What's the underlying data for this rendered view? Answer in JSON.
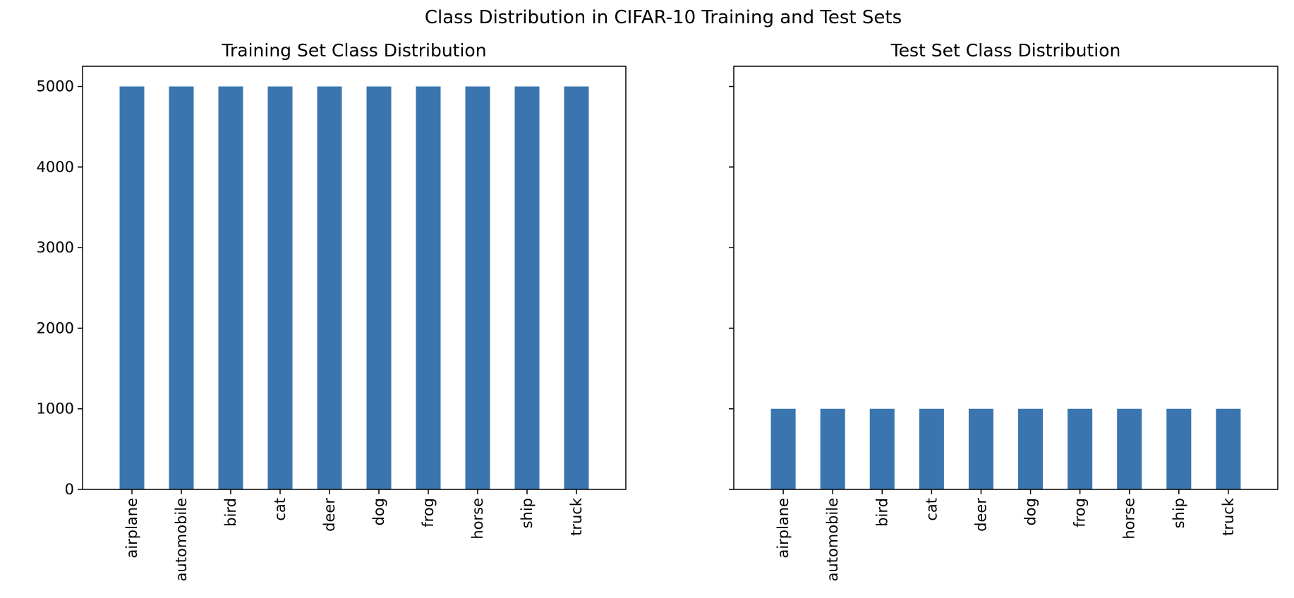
{
  "figure": {
    "suptitle": "Class Distribution in CIFAR-10 Training and Test Sets",
    "bar_color": "#3a75af"
  },
  "chart_data": [
    {
      "type": "bar",
      "title": "Training Set Class Distribution",
      "xlabel": "",
      "ylabel": "",
      "categories": [
        "airplane",
        "automobile",
        "bird",
        "cat",
        "deer",
        "dog",
        "frog",
        "horse",
        "ship",
        "truck"
      ],
      "values": [
        5000,
        5000,
        5000,
        5000,
        5000,
        5000,
        5000,
        5000,
        5000,
        5000
      ],
      "ylim": [
        0,
        5250
      ],
      "yticks": [
        0,
        1000,
        2000,
        3000,
        4000,
        5000
      ],
      "ytick_labels_shown": true,
      "grid": false,
      "legend": "none"
    },
    {
      "type": "bar",
      "title": "Test Set Class Distribution",
      "xlabel": "",
      "ylabel": "",
      "categories": [
        "airplane",
        "automobile",
        "bird",
        "cat",
        "deer",
        "dog",
        "frog",
        "horse",
        "ship",
        "truck"
      ],
      "values": [
        1000,
        1000,
        1000,
        1000,
        1000,
        1000,
        1000,
        1000,
        1000,
        1000
      ],
      "ylim": [
        0,
        5250
      ],
      "yticks": [
        0,
        1000,
        2000,
        3000,
        4000,
        5000
      ],
      "ytick_labels_shown": false,
      "grid": false,
      "legend": "none"
    }
  ]
}
